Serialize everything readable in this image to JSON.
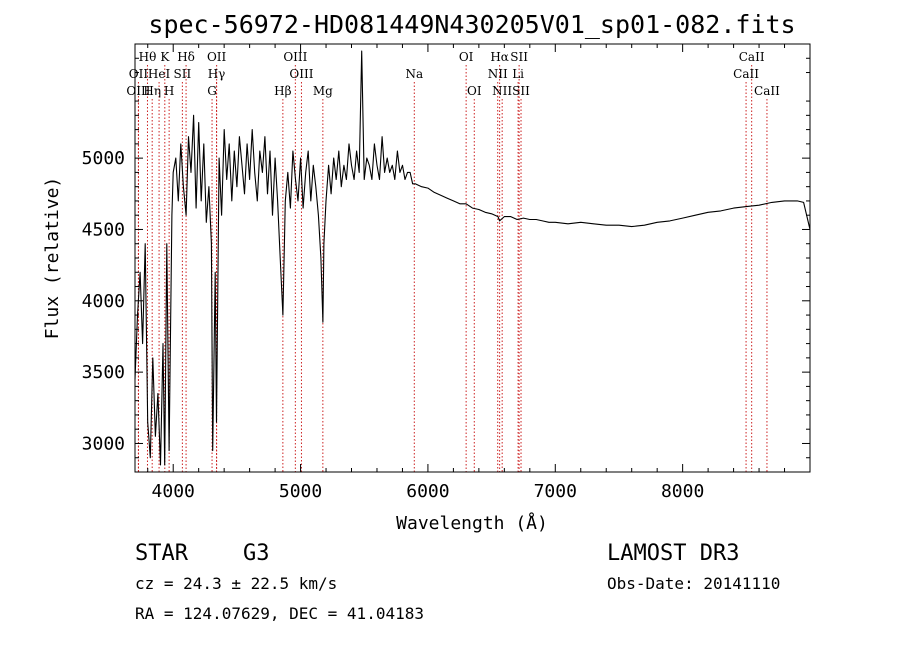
{
  "chart_data": {
    "type": "line",
    "title": "spec-56972-HD081449N430205V01_sp01-082.fits",
    "xlabel": "Wavelength (Å)",
    "ylabel": "Flux (relative)",
    "xlim": [
      3700,
      9000
    ],
    "ylim": [
      2800,
      5800
    ],
    "x_ticks": [
      4000,
      5000,
      6000,
      7000,
      8000
    ],
    "y_ticks": [
      3000,
      3500,
      4000,
      4500,
      5000
    ],
    "grid": false,
    "series": [
      {
        "x": [
          3700,
          3720,
          3740,
          3760,
          3780,
          3800,
          3820,
          3840,
          3860,
          3880,
          3900,
          3920,
          3933,
          3950,
          3968,
          3990,
          4000,
          4020,
          4040,
          4060,
          4080,
          4101,
          4120,
          4140,
          4160,
          4180,
          4200,
          4220,
          4240,
          4260,
          4280,
          4300,
          4310,
          4330,
          4340,
          4360,
          4380,
          4400,
          4420,
          4440,
          4460,
          4480,
          4500,
          4520,
          4540,
          4560,
          4580,
          4600,
          4620,
          4640,
          4660,
          4680,
          4700,
          4720,
          4740,
          4760,
          4780,
          4800,
          4820,
          4840,
          4861,
          4880,
          4900,
          4920,
          4940,
          4960,
          4980,
          5000,
          5020,
          5040,
          5060,
          5080,
          5100,
          5120,
          5140,
          5160,
          5175,
          5183,
          5200,
          5220,
          5240,
          5260,
          5280,
          5300,
          5320,
          5340,
          5360,
          5380,
          5400,
          5420,
          5440,
          5460,
          5480,
          5500,
          5520,
          5540,
          5560,
          5580,
          5600,
          5620,
          5640,
          5660,
          5680,
          5700,
          5720,
          5740,
          5760,
          5780,
          5800,
          5820,
          5840,
          5860,
          5880,
          5900,
          5950,
          6000,
          6050,
          6100,
          6150,
          6200,
          6250,
          6300,
          6350,
          6400,
          6450,
          6500,
          6550,
          6563,
          6600,
          6650,
          6700,
          6750,
          6800,
          6850,
          6900,
          6950,
          7000,
          7100,
          7200,
          7300,
          7400,
          7500,
          7600,
          7700,
          7800,
          7900,
          8000,
          8100,
          8200,
          8300,
          8400,
          8500,
          8600,
          8700,
          8800,
          8900,
          8950,
          9000
        ],
        "y": [
          3450,
          3900,
          4200,
          3700,
          4400,
          3150,
          2900,
          3600,
          3050,
          3350,
          2850,
          3700,
          2850,
          4400,
          2950,
          4600,
          4900,
          5000,
          4700,
          5100,
          4800,
          4600,
          5150,
          4900,
          5300,
          4650,
          5250,
          4700,
          5100,
          4550,
          4800,
          4400,
          2950,
          4200,
          3150,
          5000,
          4600,
          5200,
          4850,
          5100,
          4700,
          5050,
          4800,
          5150,
          4950,
          4750,
          5100,
          4850,
          5200,
          4900,
          4700,
          5050,
          4900,
          5150,
          4750,
          5050,
          4600,
          5000,
          4700,
          4300,
          3900,
          4700,
          4900,
          4650,
          5050,
          4850,
          4700,
          5000,
          4650,
          4900,
          5050,
          4700,
          4950,
          4800,
          4600,
          4300,
          3850,
          4400,
          4700,
          4950,
          4750,
          5000,
          4850,
          5050,
          4800,
          4950,
          4850,
          5100,
          4950,
          4850,
          5050,
          4900,
          5750,
          4850,
          5000,
          4950,
          4850,
          5100,
          4950,
          4850,
          5150,
          4900,
          5000,
          4900,
          4950,
          4850,
          5050,
          4900,
          4950,
          4850,
          4900,
          4900,
          4820,
          4820,
          4800,
          4790,
          4760,
          4740,
          4720,
          4700,
          4680,
          4680,
          4650,
          4640,
          4620,
          4610,
          4590,
          4560,
          4590,
          4590,
          4570,
          4580,
          4570,
          4570,
          4560,
          4550,
          4550,
          4540,
          4550,
          4540,
          4530,
          4530,
          4520,
          4530,
          4550,
          4560,
          4580,
          4600,
          4620,
          4630,
          4650,
          4660,
          4670,
          4690,
          4700,
          4700,
          4690,
          4500
        ]
      }
    ],
    "lines": [
      {
        "label": "Hθ",
        "x": 3798,
        "row": 1
      },
      {
        "label": "K",
        "x": 3934,
        "row": 1
      },
      {
        "label": "Hδ",
        "x": 4101,
        "row": 1
      },
      {
        "label": "OII",
        "x": 4341,
        "row": 1
      },
      {
        "label": "OIII",
        "x": 4959,
        "row": 1
      },
      {
        "label": "OI",
        "x": 6300,
        "row": 1
      },
      {
        "label": "Hα",
        "x": 6563,
        "row": 1
      },
      {
        "label": "SII",
        "x": 6716,
        "row": 1
      },
      {
        "label": "CaII",
        "x": 8542,
        "row": 1
      },
      {
        "label": "OII",
        "x": 3727,
        "row": 2
      },
      {
        "label": "HeI",
        "x": 3889,
        "row": 2
      },
      {
        "label": "SII",
        "x": 4072,
        "row": 2
      },
      {
        "label": "Hγ",
        "x": 4340,
        "row": 2
      },
      {
        "label": "OIII",
        "x": 5007,
        "row": 2
      },
      {
        "label": "Na",
        "x": 5893,
        "row": 2
      },
      {
        "label": "NII",
        "x": 6548,
        "row": 2
      },
      {
        "label": "Li",
        "x": 6708,
        "row": 2
      },
      {
        "label": "CaII",
        "x": 8498,
        "row": 2
      },
      {
        "label": "OIII",
        "x": 3727,
        "row": 3
      },
      {
        "label": "Hη",
        "x": 3835,
        "row": 3
      },
      {
        "label": "H",
        "x": 3968,
        "row": 3
      },
      {
        "label": "G",
        "x": 4305,
        "row": 3
      },
      {
        "label": "Hβ",
        "x": 4861,
        "row": 3
      },
      {
        "label": "Mg",
        "x": 5175,
        "row": 3
      },
      {
        "label": "OI",
        "x": 6364,
        "row": 3
      },
      {
        "label": "NII",
        "x": 6583,
        "row": 3
      },
      {
        "label": "SII",
        "x": 6731,
        "row": 3
      },
      {
        "label": "CaII",
        "x": 8662,
        "row": 3
      }
    ]
  },
  "info": {
    "class": "STAR",
    "subclass": "G3",
    "survey": "LAMOST DR3",
    "cz": "cz = 24.3 ± 22.5 km/s",
    "obs_date": "Obs-Date: 20141110",
    "radec": "RA = 124.07629, DEC =  41.04183"
  }
}
